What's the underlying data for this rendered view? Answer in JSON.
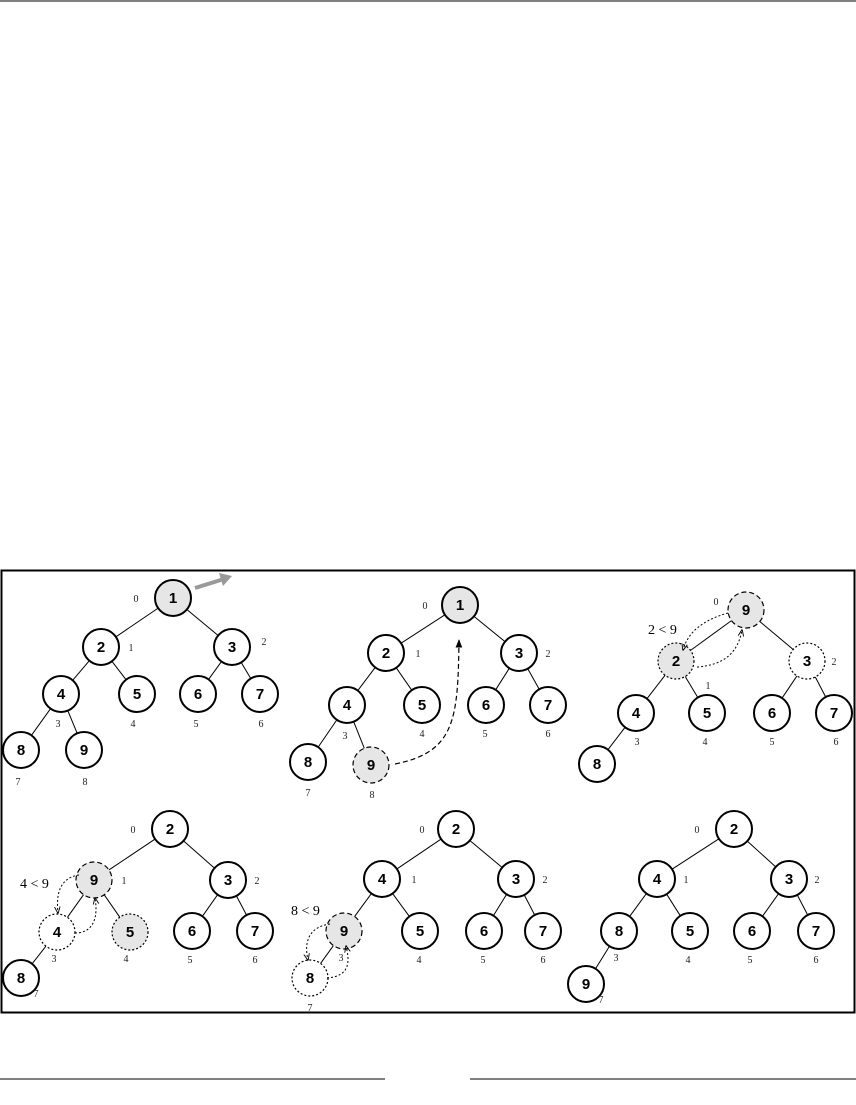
{
  "colors": {
    "highlight_fill": "#e6e6e6",
    "arrow_gray": "#999999",
    "stroke": "#000000"
  },
  "panels": [
    {
      "id": "p1",
      "nodes": [
        {
          "id": "a",
          "value": "1",
          "index": "0",
          "style": "highlight"
        },
        {
          "id": "b",
          "value": "2",
          "index": "1",
          "style": "solid"
        },
        {
          "id": "c",
          "value": "3",
          "index": "2",
          "style": "solid"
        },
        {
          "id": "d",
          "value": "4",
          "index": "3",
          "style": "solid"
        },
        {
          "id": "e",
          "value": "5",
          "index": "4",
          "style": "solid"
        },
        {
          "id": "f",
          "value": "6",
          "index": "5",
          "style": "solid"
        },
        {
          "id": "g",
          "value": "7",
          "index": "6",
          "style": "solid"
        },
        {
          "id": "h",
          "value": "8",
          "index": "7",
          "style": "solid"
        },
        {
          "id": "i",
          "value": "9",
          "index": "8",
          "style": "solid"
        }
      ],
      "edges": [
        [
          "a",
          "b"
        ],
        [
          "a",
          "c"
        ],
        [
          "b",
          "d"
        ],
        [
          "b",
          "e"
        ],
        [
          "c",
          "f"
        ],
        [
          "c",
          "g"
        ],
        [
          "d",
          "h"
        ],
        [
          "d",
          "i"
        ]
      ],
      "annotation": ""
    },
    {
      "id": "p2",
      "nodes": [
        {
          "id": "a",
          "value": "1",
          "index": "0",
          "style": "highlight"
        },
        {
          "id": "b",
          "value": "2",
          "index": "1",
          "style": "solid"
        },
        {
          "id": "c",
          "value": "3",
          "index": "2",
          "style": "solid"
        },
        {
          "id": "d",
          "value": "4",
          "index": "3",
          "style": "solid"
        },
        {
          "id": "e",
          "value": "5",
          "index": "4",
          "style": "solid"
        },
        {
          "id": "f",
          "value": "6",
          "index": "5",
          "style": "solid"
        },
        {
          "id": "g",
          "value": "7",
          "index": "6",
          "style": "solid"
        },
        {
          "id": "h",
          "value": "8",
          "index": "7",
          "style": "solid"
        },
        {
          "id": "i",
          "value": "9",
          "index": "8",
          "style": "highlight-dashed"
        }
      ],
      "edges": [
        [
          "a",
          "b"
        ],
        [
          "a",
          "c"
        ],
        [
          "b",
          "d"
        ],
        [
          "b",
          "e"
        ],
        [
          "c",
          "f"
        ],
        [
          "c",
          "g"
        ],
        [
          "d",
          "h"
        ],
        [
          "d",
          "i"
        ]
      ],
      "annotation": ""
    },
    {
      "id": "p3",
      "nodes": [
        {
          "id": "a",
          "value": "9",
          "index": "0",
          "style": "highlight-dashed"
        },
        {
          "id": "b",
          "value": "2",
          "index": "1",
          "style": "highlight-dotted"
        },
        {
          "id": "c",
          "value": "3",
          "index": "2",
          "style": "dotted"
        },
        {
          "id": "d",
          "value": "4",
          "index": "3",
          "style": "solid"
        },
        {
          "id": "e",
          "value": "5",
          "index": "4",
          "style": "solid"
        },
        {
          "id": "f",
          "value": "6",
          "index": "5",
          "style": "solid"
        },
        {
          "id": "g",
          "value": "7",
          "index": "6",
          "style": "solid"
        },
        {
          "id": "h",
          "value": "8",
          "index": "",
          "style": "solid"
        }
      ],
      "edges": [
        [
          "a",
          "b"
        ],
        [
          "a",
          "c"
        ],
        [
          "b",
          "d"
        ],
        [
          "b",
          "e"
        ],
        [
          "c",
          "f"
        ],
        [
          "c",
          "g"
        ],
        [
          "d",
          "h"
        ]
      ],
      "annotation": "2 < 9"
    },
    {
      "id": "p4",
      "nodes": [
        {
          "id": "a",
          "value": "2",
          "index": "0",
          "style": "solid"
        },
        {
          "id": "b",
          "value": "9",
          "index": "1",
          "style": "highlight-dashed"
        },
        {
          "id": "c",
          "value": "3",
          "index": "2",
          "style": "solid"
        },
        {
          "id": "d",
          "value": "4",
          "index": "3",
          "style": "dotted"
        },
        {
          "id": "e",
          "value": "5",
          "index": "4",
          "style": "highlight-dotted"
        },
        {
          "id": "f",
          "value": "6",
          "index": "5",
          "style": "solid"
        },
        {
          "id": "g",
          "value": "7",
          "index": "6",
          "style": "solid"
        },
        {
          "id": "h",
          "value": "8",
          "index": "7",
          "style": "solid"
        }
      ],
      "edges": [
        [
          "a",
          "b"
        ],
        [
          "a",
          "c"
        ],
        [
          "b",
          "d"
        ],
        [
          "b",
          "e"
        ],
        [
          "c",
          "f"
        ],
        [
          "c",
          "g"
        ],
        [
          "d",
          "h"
        ]
      ],
      "annotation": "4 < 9"
    },
    {
      "id": "p5",
      "nodes": [
        {
          "id": "a",
          "value": "2",
          "index": "0",
          "style": "solid"
        },
        {
          "id": "b",
          "value": "4",
          "index": "1",
          "style": "solid"
        },
        {
          "id": "c",
          "value": "3",
          "index": "2",
          "style": "solid"
        },
        {
          "id": "d",
          "value": "9",
          "index": "3",
          "style": "highlight-dashed"
        },
        {
          "id": "e",
          "value": "5",
          "index": "4",
          "style": "solid"
        },
        {
          "id": "f",
          "value": "6",
          "index": "5",
          "style": "solid"
        },
        {
          "id": "g",
          "value": "7",
          "index": "6",
          "style": "solid"
        },
        {
          "id": "h",
          "value": "8",
          "index": "7",
          "style": "dotted"
        }
      ],
      "edges": [
        [
          "a",
          "b"
        ],
        [
          "a",
          "c"
        ],
        [
          "b",
          "d"
        ],
        [
          "b",
          "e"
        ],
        [
          "c",
          "f"
        ],
        [
          "c",
          "g"
        ],
        [
          "d",
          "h"
        ]
      ],
      "annotation": "8 < 9"
    },
    {
      "id": "p6",
      "nodes": [
        {
          "id": "a",
          "value": "2",
          "index": "0",
          "style": "solid"
        },
        {
          "id": "b",
          "value": "4",
          "index": "1",
          "style": "solid"
        },
        {
          "id": "c",
          "value": "3",
          "index": "2",
          "style": "solid"
        },
        {
          "id": "d",
          "value": "8",
          "index": "3",
          "style": "solid"
        },
        {
          "id": "e",
          "value": "5",
          "index": "4",
          "style": "solid"
        },
        {
          "id": "f",
          "value": "6",
          "index": "5",
          "style": "solid"
        },
        {
          "id": "g",
          "value": "7",
          "index": "6",
          "style": "solid"
        },
        {
          "id": "h",
          "value": "9",
          "index": "7",
          "style": "solid"
        }
      ],
      "edges": [
        [
          "a",
          "b"
        ],
        [
          "a",
          "c"
        ],
        [
          "b",
          "d"
        ],
        [
          "b",
          "e"
        ],
        [
          "c",
          "f"
        ],
        [
          "c",
          "g"
        ],
        [
          "d",
          "h"
        ]
      ],
      "annotation": ""
    }
  ]
}
